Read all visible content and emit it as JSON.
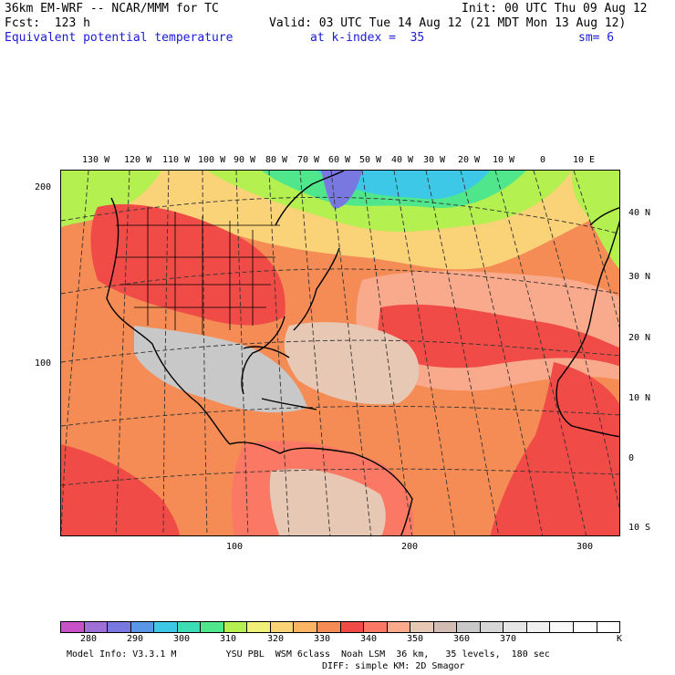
{
  "header": {
    "model": "36km EM-WRF -- NCAR/MMM for TC",
    "init": "Init: 00 UTC Thu 09 Aug 12",
    "fcst": "Fcst:  123 h",
    "valid": "Valid: 03 UTC Tue 14 Aug 12 (21 MDT Mon 13 Aug 12)",
    "field": "Equivalent potential temperature",
    "level": "at k-index =  35",
    "smooth": "sm= 6"
  },
  "map": {
    "top_lon_labels": [
      "130 W",
      "120 W",
      "110 W",
      "100 W",
      "90 W",
      "80 W",
      "70 W",
      "60 W",
      "50 W",
      "40 W",
      "30 W",
      "20 W",
      "10 W",
      "0",
      "10 E"
    ],
    "right_lat_labels": [
      "40 N",
      "30 N",
      "20 N",
      "10 N",
      "0",
      "10 S"
    ],
    "left_grid_labels": [
      "200",
      "100"
    ],
    "bottom_grid_labels": [
      "100",
      "200",
      "300"
    ]
  },
  "colorbar": {
    "colors": [
      "#c850c8",
      "#a070d8",
      "#7878e0",
      "#5a96e6",
      "#3cc8e6",
      "#3cdcb4",
      "#50e68c",
      "#b4f050",
      "#f0f078",
      "#fad278",
      "#fab464",
      "#f58c55",
      "#f04b46",
      "#fa7864",
      "#faaa8c",
      "#e6c8b4",
      "#d2bcb4",
      "#c8c8c8",
      "#d6d6d6",
      "#e6e6e6",
      "#f0f0f0",
      "#fafafa",
      "#ffffff",
      "#ffffff"
    ],
    "labels": [
      "280",
      "290",
      "300",
      "310",
      "320",
      "330",
      "340",
      "350",
      "360",
      "370"
    ],
    "unit": "K"
  },
  "footer": {
    "line1": "Model Info: V3.3.1 M         YSU PBL  WSM 6class  Noah LSM  36 km,   35 levels,  180 sec",
    "line2": "DIFF: simple KM: 2D Smagor"
  }
}
